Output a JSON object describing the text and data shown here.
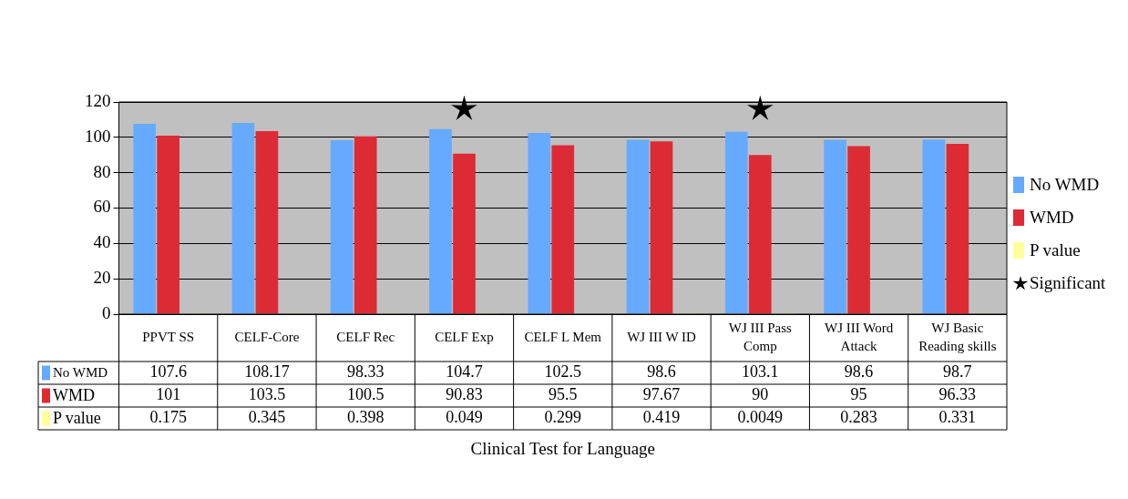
{
  "chart_data": {
    "type": "bar",
    "xlabel": "Clinical Test for Language",
    "categories": [
      "PPVT SS",
      "CELF-Core",
      "CELF Rec",
      "CELF Exp",
      "CELF L Mem",
      "WJ III W ID",
      "WJ III Pass Comp",
      "WJ III Word Attack",
      "WJ Basic Reading skills"
    ],
    "series": [
      {
        "name": "No WMD",
        "color": "#66aaff",
        "values": [
          107.6,
          108.17,
          98.33,
          104.7,
          102.5,
          98.6,
          103.1,
          98.6,
          98.7
        ],
        "value_labels": [
          "107.6",
          "108.17",
          "98.33",
          "104.7",
          "102.5",
          "98.6",
          "103.1",
          "98.6",
          "98.7"
        ]
      },
      {
        "name": "WMD",
        "color": "#dd2b35",
        "values": [
          101,
          103.5,
          100.5,
          90.83,
          95.5,
          97.67,
          90,
          95,
          96.33
        ],
        "value_labels": [
          "101",
          "103.5",
          "100.5",
          "90.83",
          "95.5",
          "97.67",
          "90",
          "95",
          "96.33"
        ]
      },
      {
        "name": "P value",
        "color": "#ffff99",
        "values": [
          0.175,
          0.345,
          0.398,
          0.049,
          0.299,
          0.419,
          0.0049,
          0.283,
          0.331
        ],
        "value_labels": [
          "0.175",
          "0.345",
          "0.398",
          "0.049",
          "0.299",
          "0.419",
          "0.0049",
          "0.283",
          "0.331"
        ]
      },
      {
        "name": "Significant",
        "type": "scatter",
        "marker": "star",
        "color": "#000000",
        "x": [
          "CELF Exp",
          "WJ III Pass Comp"
        ],
        "values": [
          116,
          116
        ]
      }
    ],
    "ylim": [
      0,
      120
    ],
    "yticks": [
      0,
      20,
      40,
      60,
      80,
      100,
      120
    ],
    "grid": "y",
    "legend": "right"
  }
}
